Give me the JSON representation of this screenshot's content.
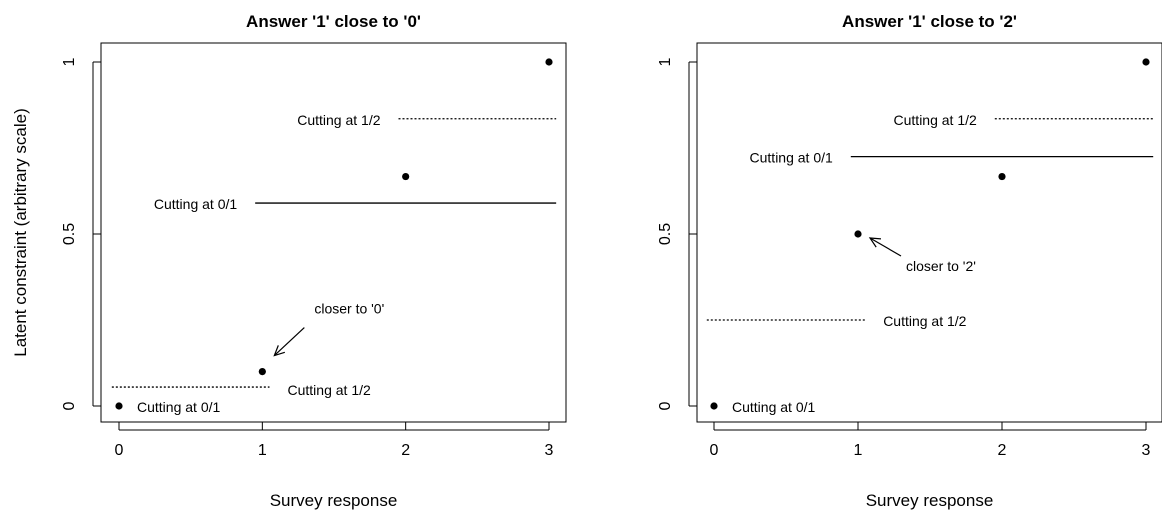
{
  "chart_data": [
    {
      "type": "scatter",
      "title": "Answer '1' close to '0'",
      "xlabel": "Survey response",
      "ylabel": "Latent constraint (arbitrary scale)",
      "xlim": [
        0,
        3
      ],
      "ylim": [
        0,
        1
      ],
      "xticks": [
        "0",
        "1",
        "2",
        "3"
      ],
      "yticks": [
        "0",
        "0.5",
        "1"
      ],
      "points": [
        {
          "x": 0,
          "y": 0
        },
        {
          "x": 1,
          "y": 0.1
        },
        {
          "x": 2,
          "y": 0.667
        },
        {
          "x": 3,
          "y": 1
        }
      ],
      "cut_lines": [
        {
          "label": "Cutting at 0/1",
          "style": "solid",
          "y": 0.59,
          "x_from": 0.95,
          "x_to": 3.05
        },
        {
          "label": "Cutting at 1/2",
          "style": "dotted",
          "y": 0.055,
          "x_from": -0.05,
          "x_to": 1.05
        },
        {
          "label": "Cutting at 1/2",
          "style": "dotted",
          "y": 0.835,
          "x_from": 1.95,
          "x_to": 3.05
        }
      ],
      "point_labels": [
        {
          "text": "Cutting at 0/1",
          "x": 0,
          "y": 0
        }
      ],
      "annotations": [
        {
          "text": "closer to '0'",
          "point": {
            "x": 1,
            "y": 0.1
          }
        }
      ]
    },
    {
      "type": "scatter",
      "title": "Answer '1' close to '2'",
      "xlabel": "Survey response",
      "ylabel": "",
      "xlim": [
        0,
        3
      ],
      "ylim": [
        0,
        1
      ],
      "xticks": [
        "0",
        "1",
        "2",
        "3"
      ],
      "yticks": [
        "0",
        "0.5",
        "1"
      ],
      "points": [
        {
          "x": 0,
          "y": 0
        },
        {
          "x": 1,
          "y": 0.5
        },
        {
          "x": 2,
          "y": 0.667
        },
        {
          "x": 3,
          "y": 1
        }
      ],
      "cut_lines": [
        {
          "label": "Cutting at 0/1",
          "style": "solid",
          "y": 0.725,
          "x_from": 0.95,
          "x_to": 3.05
        },
        {
          "label": "Cutting at 1/2",
          "style": "dotted",
          "y": 0.835,
          "x_from": 1.95,
          "x_to": 3.05
        },
        {
          "label": "Cutting at 1/2",
          "style": "dotted",
          "y": 0.25,
          "x_from": -0.05,
          "x_to": 1.05
        }
      ],
      "point_labels": [
        {
          "text": "Cutting at 0/1",
          "x": 0,
          "y": 0
        }
      ],
      "annotations": [
        {
          "text": "closer to '2'",
          "point": {
            "x": 1,
            "y": 0.5
          }
        }
      ]
    }
  ]
}
